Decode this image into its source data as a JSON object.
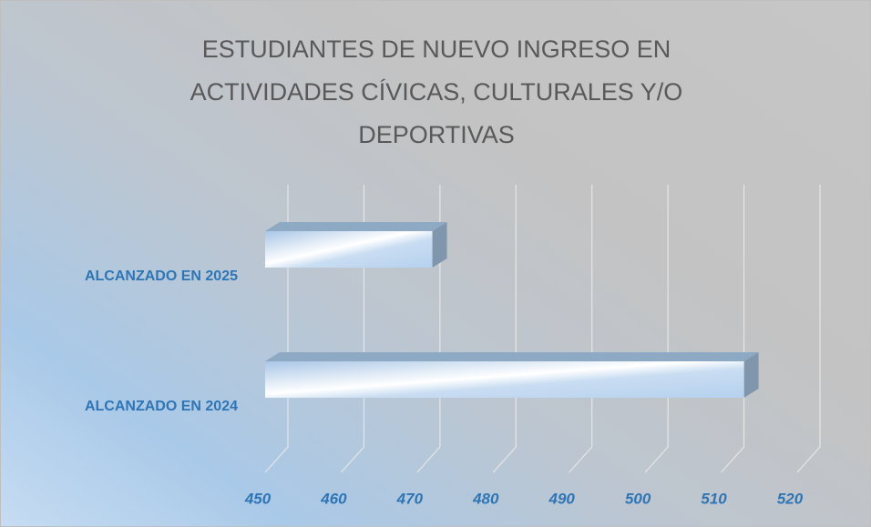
{
  "chart_data": {
    "type": "bar3d",
    "orientation": "horizontal",
    "title": "ESTUDIANTES DE NUEVO INGRESO EN ACTIVIDADES CÍVICAS, CULTURALES Y/O DEPORTIVAS",
    "categories": [
      "ALCANZADO EN 2025",
      "ALCANZADO EN 2024"
    ],
    "values": [
      472,
      513
    ],
    "color": "#b9d5ee",
    "xlim": [
      450,
      520
    ],
    "xticks": [
      450,
      460,
      470,
      480,
      490,
      500,
      510,
      520
    ],
    "grid": true
  }
}
